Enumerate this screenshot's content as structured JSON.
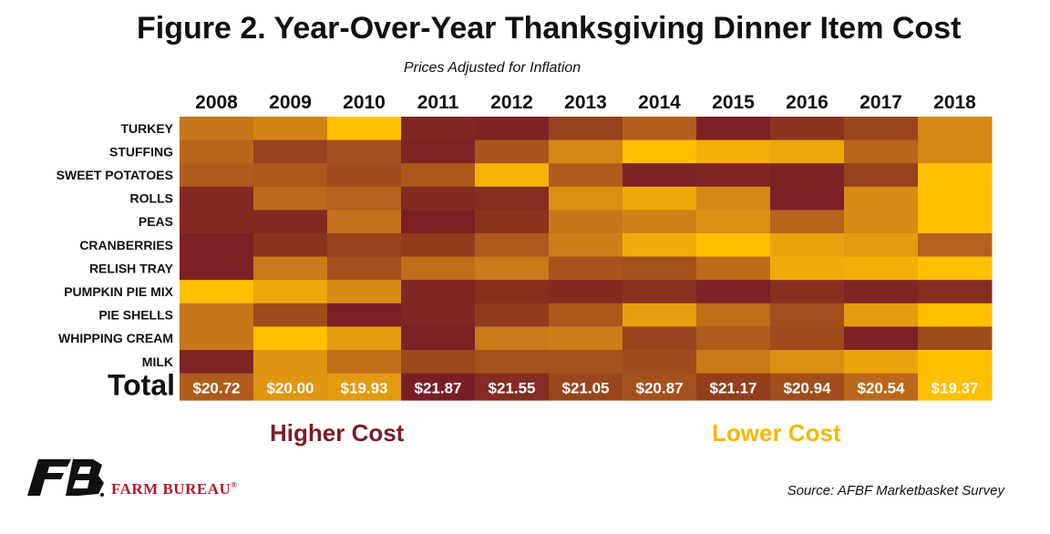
{
  "chart_data": {
    "type": "heatmap",
    "title": "Figure 2. Year-Over-Year Thanksgiving Dinner Item Cost",
    "subtitle": "Prices Adjusted for Inflation",
    "columns": [
      "2008",
      "2009",
      "2010",
      "2011",
      "2012",
      "2013",
      "2014",
      "2015",
      "2016",
      "2017",
      "2018"
    ],
    "rows": [
      "TURKEY",
      "STUFFING",
      "SWEET POTATOES",
      "ROLLS",
      "PEAS",
      "CRANBERRIES",
      "RELISH TRAY",
      "PUMPKIN PIE MIX",
      "PIE SHELLS",
      "WHIPPING CREAM",
      "MILK"
    ],
    "cost_scale_note": "cell value = relative cost level, 0 = highest cost (dark red), 1 = lowest cost (yellow)",
    "cells": [
      [
        0.6,
        0.66,
        1.0,
        0.08,
        0.04,
        0.3,
        0.48,
        0.02,
        0.2,
        0.32,
        0.68
      ],
      [
        0.52,
        0.3,
        0.38,
        0.05,
        0.42,
        0.68,
        1.0,
        0.9,
        0.85,
        0.52,
        0.68
      ],
      [
        0.46,
        0.44,
        0.36,
        0.44,
        0.92,
        0.46,
        0.04,
        0.06,
        0.04,
        0.3,
        1.0
      ],
      [
        0.1,
        0.54,
        0.5,
        0.12,
        0.14,
        0.72,
        0.86,
        0.68,
        0.02,
        0.7,
        1.0
      ],
      [
        0.12,
        0.1,
        0.58,
        0.02,
        0.2,
        0.6,
        0.65,
        0.72,
        0.52,
        0.7,
        1.0
      ],
      [
        0.03,
        0.2,
        0.3,
        0.26,
        0.45,
        0.64,
        0.88,
        1.0,
        0.84,
        0.78,
        0.5
      ],
      [
        0.03,
        0.62,
        0.38,
        0.56,
        0.62,
        0.42,
        0.4,
        0.55,
        0.88,
        0.9,
        1.0
      ],
      [
        1.0,
        0.85,
        0.7,
        0.08,
        0.16,
        0.12,
        0.18,
        0.03,
        0.16,
        0.06,
        0.13
      ],
      [
        0.6,
        0.36,
        0.02,
        0.08,
        0.26,
        0.44,
        0.8,
        0.56,
        0.38,
        0.78,
        1.0
      ],
      [
        0.6,
        1.0,
        0.78,
        0.04,
        0.62,
        0.64,
        0.3,
        0.46,
        0.36,
        0.04,
        0.36
      ],
      [
        0.05,
        0.74,
        0.56,
        0.34,
        0.4,
        0.4,
        0.36,
        0.62,
        0.72,
        0.84,
        1.0
      ]
    ],
    "total_label": "Total",
    "totals": [
      20.72,
      20.0,
      19.93,
      21.87,
      21.55,
      21.05,
      20.87,
      21.17,
      20.94,
      20.54,
      19.37
    ],
    "total_labels": [
      "$20.72",
      "$20.00",
      "$19.93",
      "$21.87",
      "$21.55",
      "$21.05",
      "$20.87",
      "$21.17",
      "$20.94",
      "$20.54",
      "$19.37"
    ],
    "colors": {
      "high": "#7a1e26",
      "mid": "#b5611d",
      "low": "#ffc000"
    },
    "legend": {
      "high_label": "Higher Cost",
      "low_label": "Lower Cost"
    }
  },
  "branding": {
    "org_name": "FARM BUREAU",
    "logo_text": "FB"
  },
  "source": "Source: AFBF Marketbasket Survey"
}
